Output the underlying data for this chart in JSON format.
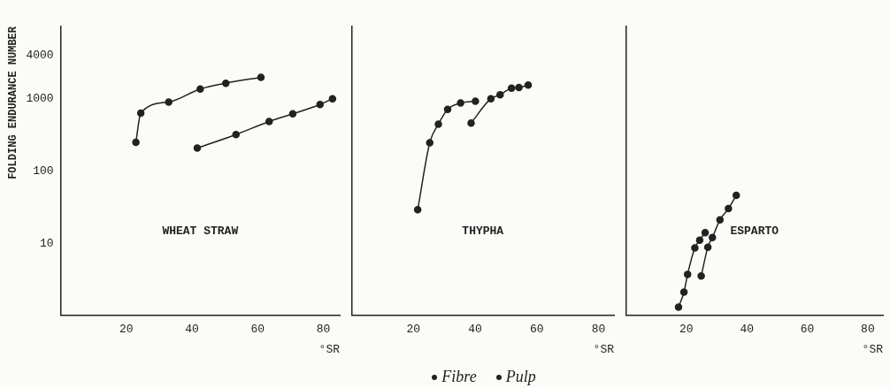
{
  "chart_data": [
    {
      "type": "line",
      "ylabel": "FOLDING ENDURANCE NUMBER",
      "xlabel": "°SR",
      "xlim": [
        0,
        85
      ],
      "xticks": [
        20,
        40,
        60,
        80
      ],
      "ylim": [
        1,
        10000
      ],
      "yticks": [
        10,
        100,
        1000,
        4000
      ],
      "log": "y",
      "marker": "circle",
      "annotations": [
        "WHEAT STRAW"
      ],
      "series": [
        {
          "color": "#222222",
          "x": [
            22.9,
            24.4,
            32.9,
            42.5,
            50.3,
            61
          ],
          "values": [
            249,
            630,
            900,
            1360,
            1640,
            1980
          ]
        },
        {
          "color": "#222222",
          "x": [
            41.6,
            53.4,
            63.5,
            70.7,
            79,
            82.8
          ],
          "values": [
            207,
            319,
            484,
            617,
            832,
            1000
          ]
        }
      ]
    },
    {
      "type": "line",
      "xlabel": "°SR",
      "xlim": [
        0,
        85
      ],
      "xticks": [
        20,
        40,
        60,
        80
      ],
      "ylim": [
        1,
        10000
      ],
      "yticks": [
        10,
        100,
        1000,
        4000
      ],
      "log": "y",
      "marker": "circle",
      "tick_labels": "x",
      "legend": "bottom",
      "annotations": [
        "THYPHA"
      ],
      "series": [
        {
          "name": "Fibre",
          "color": "#222222",
          "x": [
            21.4,
            25.3,
            28.1,
            31.1,
            35.3,
            40.1
          ],
          "values": [
            29,
            246,
            444,
            713,
            873,
            925
          ]
        },
        {
          "name": "Pulp",
          "color": "#222222",
          "x": [
            38.7,
            45.1,
            48.1,
            51.8,
            54.2,
            57.2
          ],
          "values": [
            461,
            1000,
            1134,
            1403,
            1430,
            1545
          ]
        }
      ]
    },
    {
      "type": "line",
      "xlabel": "°SR",
      "xlim": [
        0,
        85
      ],
      "xticks": [
        20,
        40,
        60,
        80
      ],
      "ylim": [
        1,
        10000
      ],
      "yticks": [
        10,
        100,
        1000,
        4000
      ],
      "log": "y",
      "marker": "circle",
      "tick_labels": "x",
      "annotations": [
        "ESPARTO"
      ],
      "series": [
        {
          "color": "#222222",
          "x": [
            17.4,
            19.2,
            20.4,
            22.8,
            24.4,
            26.2
          ],
          "values": [
            1.3,
            2.1,
            3.7,
            8.6,
            11,
            14
          ]
        },
        {
          "color": "#222222",
          "x": [
            24.9,
            27.1,
            28.6,
            31.1,
            33.9,
            36.5
          ],
          "values": [
            3.5,
            8.8,
            12,
            21,
            30,
            46
          ]
        }
      ]
    }
  ]
}
